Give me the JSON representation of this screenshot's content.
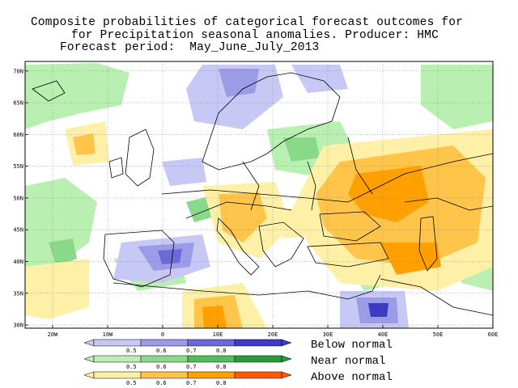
{
  "title": {
    "line1": "Composite probabilities of categorical forecast outcomes for",
    "line2": "for Precipitation seasonal anomalies. Producer: HMC",
    "line3": "Forecast period:  May_June_July_2013"
  },
  "map": {
    "lon_range": [
      -25,
      60
    ],
    "lat_range": [
      29.5,
      71.5
    ],
    "lat_ticks": [
      {
        "value": 70,
        "label": "70N"
      },
      {
        "value": 65,
        "label": "65N"
      },
      {
        "value": 60,
        "label": "60N"
      },
      {
        "value": 55,
        "label": "55N"
      },
      {
        "value": 50,
        "label": "50N"
      },
      {
        "value": 45,
        "label": "45N"
      },
      {
        "value": 40,
        "label": "40N"
      },
      {
        "value": 35,
        "label": "35N"
      },
      {
        "value": 30,
        "label": "30N"
      }
    ],
    "lon_ticks": [
      {
        "value": -20,
        "label": "20W"
      },
      {
        "value": -10,
        "label": "10W"
      },
      {
        "value": 0,
        "label": "0"
      },
      {
        "value": 10,
        "label": "10E"
      },
      {
        "value": 20,
        "label": "20E"
      },
      {
        "value": 30,
        "label": "30E"
      },
      {
        "value": 40,
        "label": "40E"
      },
      {
        "value": 50,
        "label": "50E"
      },
      {
        "value": 60,
        "label": "60E"
      }
    ],
    "colors": {
      "below": [
        "#c8c8f5",
        "#9b9be8",
        "#6a6ad9",
        "#3b3bc4"
      ],
      "near": [
        "#b9f0b2",
        "#8ad98a",
        "#52bd5a",
        "#2a9a3a"
      ],
      "above": [
        "#fff0a8",
        "#ffc44a",
        "#ffa000",
        "#ff5a00"
      ]
    }
  },
  "legend": {
    "ticks": [
      "0.5",
      "0.6",
      "0.7",
      "0.8"
    ],
    "rows": [
      {
        "key": "below",
        "label": "Below normal"
      },
      {
        "key": "near",
        "label": "Near normal"
      },
      {
        "key": "above",
        "label": "Above normal"
      }
    ]
  }
}
